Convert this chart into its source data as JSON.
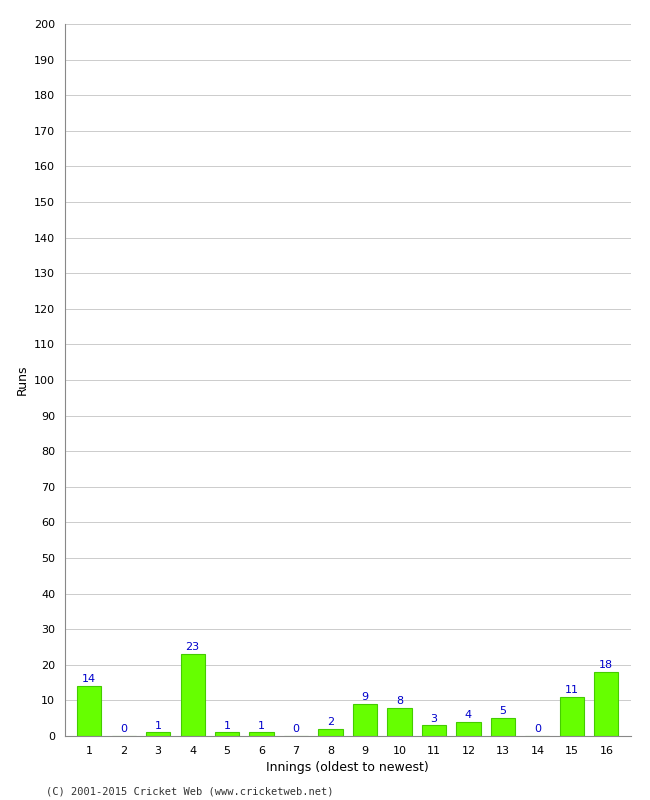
{
  "title": "",
  "xlabel": "Innings (oldest to newest)",
  "ylabel": "Runs",
  "innings": [
    1,
    2,
    3,
    4,
    5,
    6,
    7,
    8,
    9,
    10,
    11,
    12,
    13,
    14,
    15,
    16
  ],
  "values": [
    14,
    0,
    1,
    23,
    1,
    1,
    0,
    2,
    9,
    8,
    3,
    4,
    5,
    0,
    11,
    18
  ],
  "bar_color": "#66ff00",
  "bar_edge_color": "#44cc00",
  "value_color": "#0000cc",
  "ylim": [
    0,
    200
  ],
  "ytick_step": 10,
  "background_color": "#ffffff",
  "footer": "(C) 2001-2015 Cricket Web (www.cricketweb.net)",
  "grid_color": "#cccccc"
}
